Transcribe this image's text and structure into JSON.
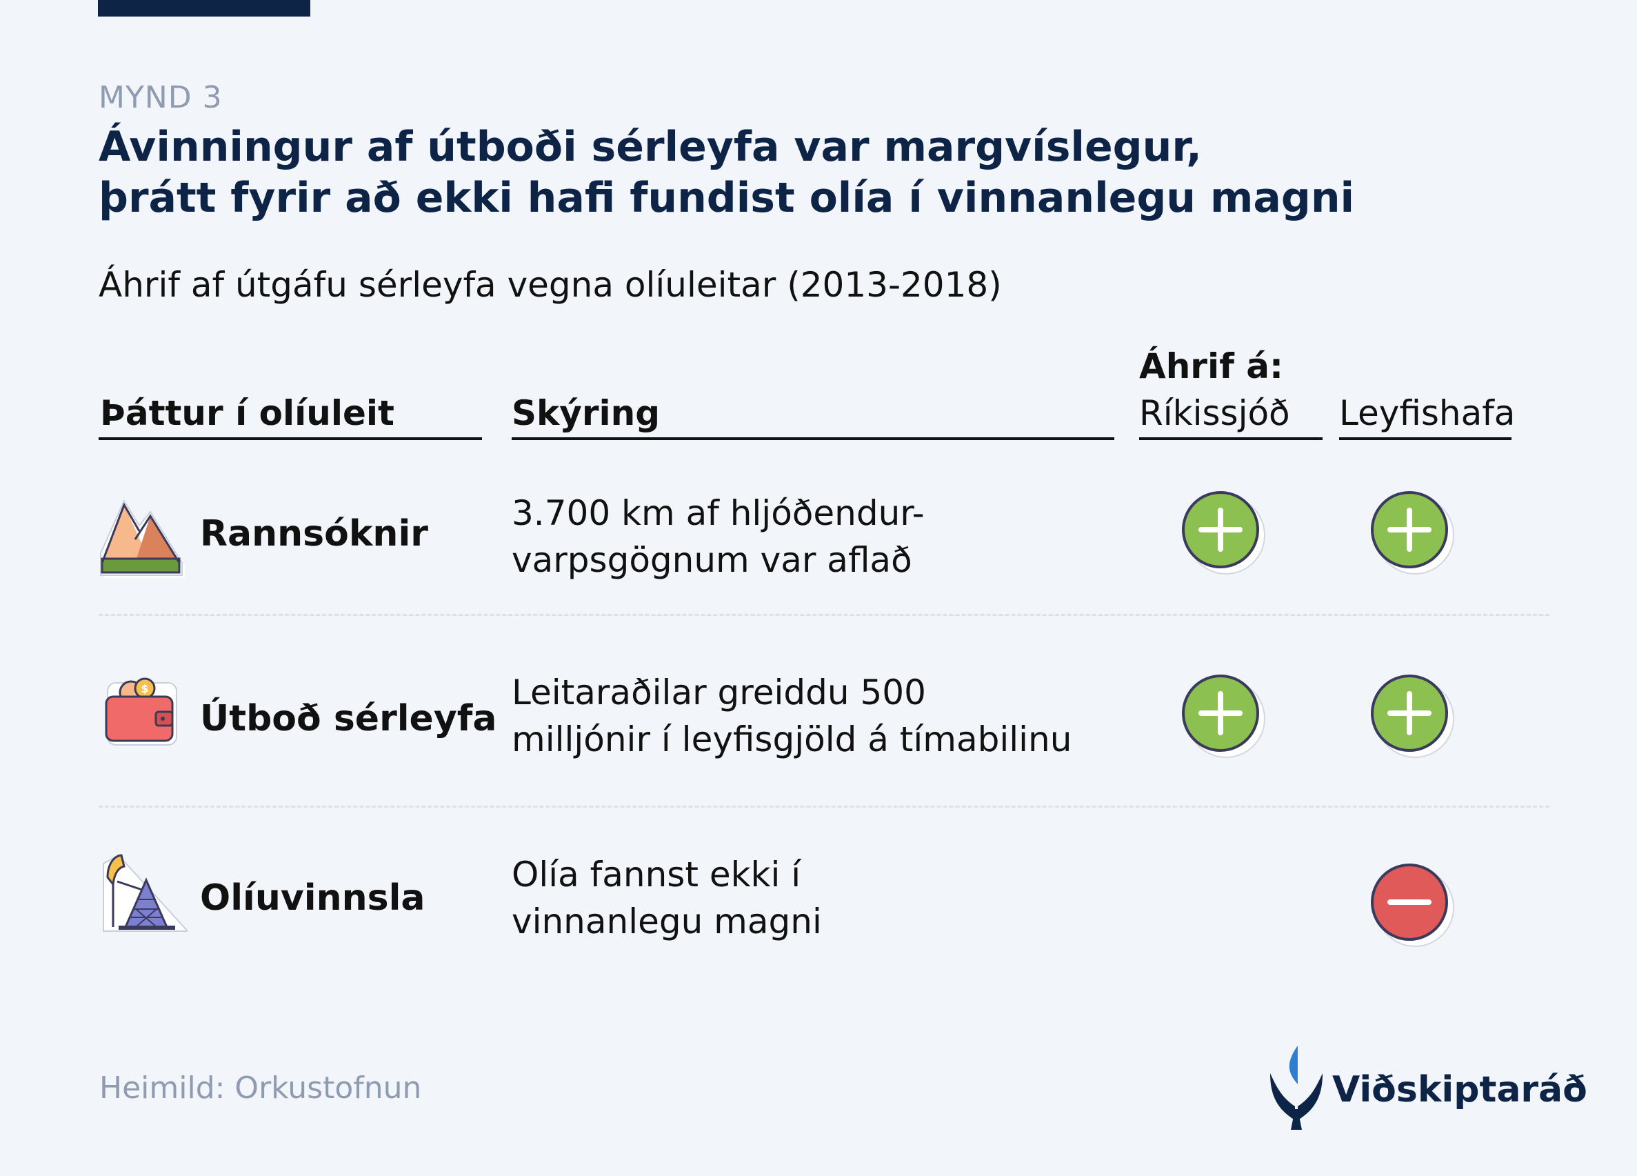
{
  "figure_label": "MYND 3",
  "title": {
    "line1": "Ávinningur af útboði sérleyfa var margvíslegur,",
    "line2": "þrátt fyrir að ekki hafi fundist olía í vinnanlegu magni"
  },
  "subtitle": "Áhrif af útgáfu sérleyfa vegna olíuleitar (2013-2018)",
  "table": {
    "headers": {
      "factor": "Þáttur í olíuleit",
      "explanation": "Skýring",
      "impact_group": "Áhrif á:",
      "treasury": "Ríkissjóð",
      "licensee": "Leyfishafa"
    },
    "rows": [
      {
        "name": "Rannsóknir",
        "icon": "mountain-icon",
        "desc_line1": "3.700 km af hljóðendur-",
        "desc_line2": "varpsgögnum var aflað",
        "treasury": "plus",
        "licensee": "plus"
      },
      {
        "name": "Útboð sérleyfa",
        "icon": "wallet-icon",
        "desc_line1": "Leitaraðilar greiddu 500",
        "desc_line2": "milljónir í leyfisgjöld á tímabilinu",
        "treasury": "plus",
        "licensee": "plus"
      },
      {
        "name": "Olíuvinnsla",
        "icon": "oil-pump-icon",
        "desc_line1": "Olía fannst ekki í",
        "desc_line2": "vinnanlegu magni",
        "treasury": "none",
        "licensee": "minus"
      }
    ]
  },
  "source": "Heimild: Orkustofnun",
  "brand": "Viðskiptaráð",
  "colors": {
    "navy": "#0d2446",
    "positive": "#8cc152",
    "negative": "#e05a5a",
    "muted": "#8e9bb0",
    "background": "#f2f5fa"
  }
}
